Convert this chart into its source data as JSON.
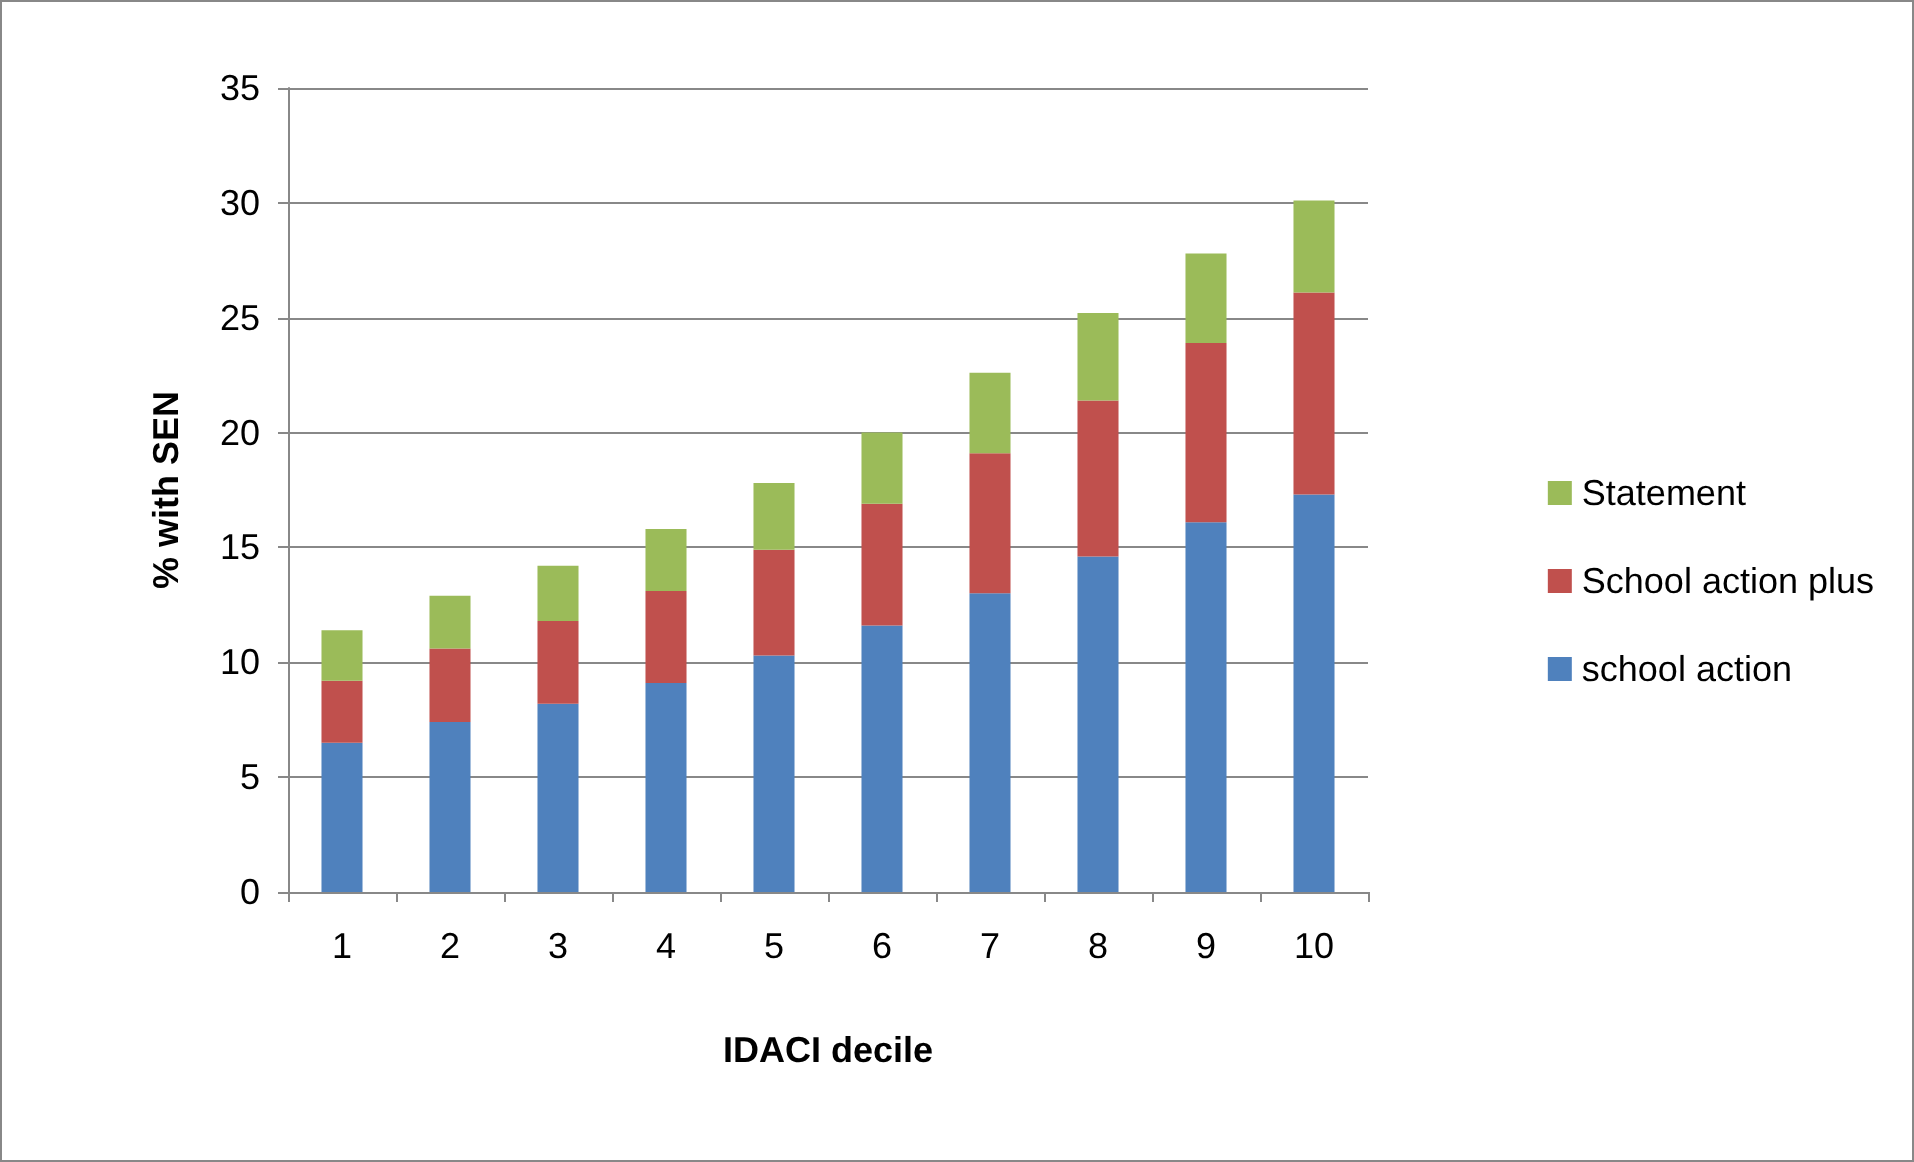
{
  "chart_data": {
    "type": "bar",
    "stacked": true,
    "xlabel": "IDACI decile",
    "ylabel": "% with SEN",
    "categories": [
      "1",
      "2",
      "3",
      "4",
      "5",
      "6",
      "7",
      "8",
      "9",
      "10"
    ],
    "series": [
      {
        "name": "school action",
        "color": "#4f81bd",
        "values": [
          6.5,
          7.4,
          8.2,
          9.1,
          10.3,
          11.6,
          13.0,
          14.6,
          16.1,
          17.3
        ]
      },
      {
        "name": "School action plus",
        "color": "#c0504d",
        "values": [
          2.7,
          3.2,
          3.6,
          4.0,
          4.6,
          5.3,
          6.1,
          6.8,
          7.8,
          8.8
        ]
      },
      {
        "name": "Statement",
        "color": "#9bbb59",
        "values": [
          2.2,
          2.3,
          2.4,
          2.7,
          2.9,
          3.1,
          3.5,
          3.8,
          3.9,
          4.0
        ]
      }
    ],
    "ylim": [
      0,
      35
    ],
    "yticks": [
      0,
      5,
      10,
      15,
      20,
      25,
      30,
      35
    ],
    "grid": "y",
    "legend": "right"
  }
}
